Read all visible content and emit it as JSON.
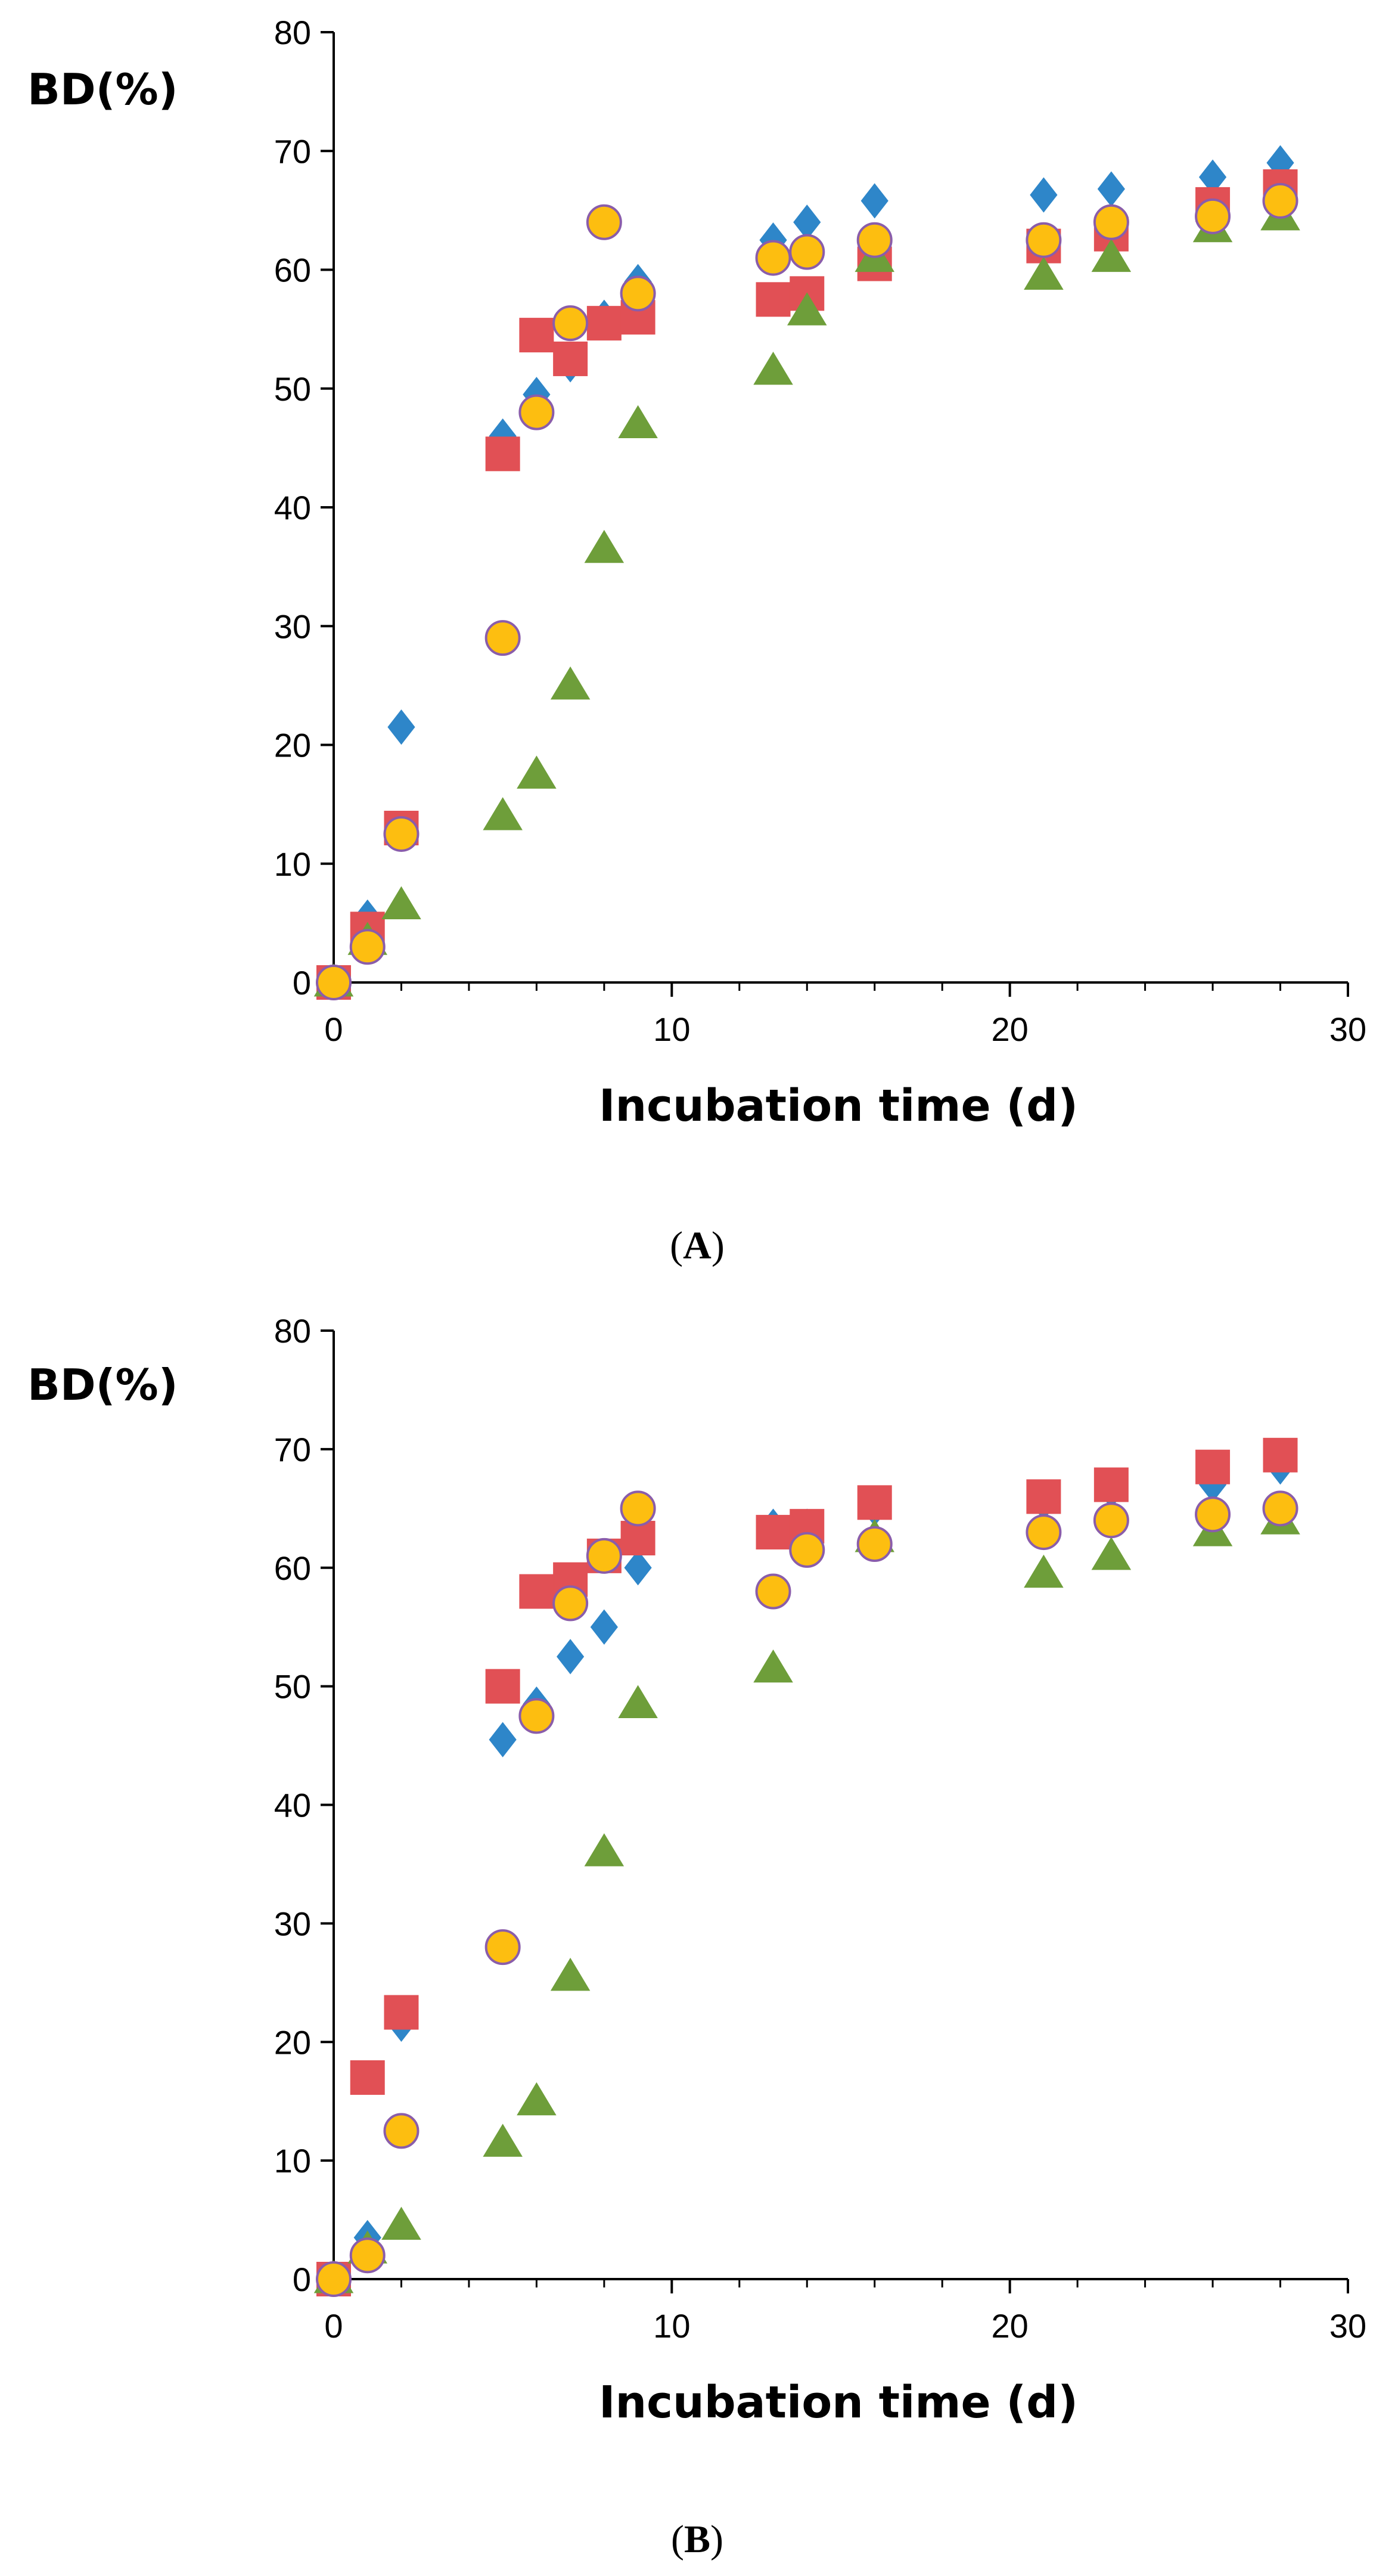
{
  "chart_data": [
    {
      "type": "scatter",
      "panel": "A",
      "ylabel": "BD(%)",
      "xlabel": "Incubation time (d)",
      "xlim": [
        0,
        30
      ],
      "ylim": [
        0,
        80
      ],
      "xticks": [
        "0",
        "10",
        "20",
        "30"
      ],
      "yticks": [
        "0",
        "10",
        "20",
        "30",
        "40",
        "50",
        "60",
        "70",
        "80"
      ],
      "series": [
        {
          "name": "diamond",
          "marker": "diamond",
          "color": "#2E86C9",
          "x": [
            0,
            1,
            2,
            5,
            6,
            7,
            8,
            9,
            13,
            14,
            16,
            21,
            23,
            26,
            28
          ],
          "y": [
            0,
            5.5,
            21.5,
            46,
            49.5,
            52,
            56,
            59,
            62.5,
            64,
            65.8,
            66.3,
            66.8,
            67.8,
            69
          ]
        },
        {
          "name": "square",
          "marker": "square",
          "color": "#E15055",
          "x": [
            0,
            1,
            2,
            5,
            6,
            7,
            8,
            9,
            13,
            14,
            16,
            21,
            23,
            26,
            28
          ],
          "y": [
            0,
            4.5,
            13,
            44.5,
            54.5,
            52.5,
            55.5,
            56,
            57.5,
            58,
            60.5,
            62,
            63,
            65.5,
            67
          ]
        },
        {
          "name": "triangle",
          "marker": "triangle",
          "color": "#6E9E3A",
          "x": [
            0,
            1,
            2,
            5,
            6,
            7,
            8,
            9,
            13,
            14,
            16,
            21,
            23,
            26,
            28
          ],
          "y": [
            0,
            3.5,
            6.5,
            14,
            17.5,
            25,
            36.5,
            47,
            51.5,
            56.5,
            61,
            59.5,
            61,
            63.5,
            64.5
          ]
        },
        {
          "name": "circle",
          "marker": "circle",
          "color": "#FDBE10",
          "x": [
            0,
            1,
            2,
            5,
            6,
            7,
            8,
            9,
            13,
            14,
            16,
            21,
            23,
            26,
            28
          ],
          "y": [
            0,
            3,
            12.5,
            29,
            48,
            55.5,
            64,
            58,
            61,
            61.5,
            62.5,
            62.5,
            64,
            64.5,
            65.8
          ]
        }
      ],
      "caption": "A"
    },
    {
      "type": "scatter",
      "panel": "B",
      "ylabel": "BD(%)",
      "xlabel": "Incubation time (d)",
      "xlim": [
        0,
        30
      ],
      "ylim": [
        0,
        80
      ],
      "xticks": [
        "0",
        "10",
        "20",
        "30"
      ],
      "yticks": [
        "0",
        "10",
        "20",
        "30",
        "40",
        "50",
        "60",
        "70",
        "80"
      ],
      "series": [
        {
          "name": "diamond",
          "marker": "diamond",
          "color": "#2E86C9",
          "x": [
            0,
            1,
            2,
            5,
            6,
            7,
            8,
            9,
            13,
            14,
            16,
            21,
            23,
            26,
            28
          ],
          "y": [
            0,
            3.5,
            21.5,
            45.5,
            48.5,
            52.5,
            55,
            60,
            63.5,
            63.5,
            65,
            65.5,
            66.5,
            67,
            68.5
          ]
        },
        {
          "name": "square",
          "marker": "square",
          "color": "#E15055",
          "x": [
            0,
            1,
            2,
            5,
            6,
            7,
            8,
            9,
            13,
            14,
            16,
            21,
            23,
            26,
            28
          ],
          "y": [
            0,
            17,
            22.5,
            50,
            58,
            59,
            61,
            62.5,
            63,
            63.5,
            65.5,
            66,
            67,
            68.5,
            69.5
          ]
        },
        {
          "name": "triangle",
          "marker": "triangle",
          "color": "#6E9E3A",
          "x": [
            0,
            1,
            2,
            5,
            6,
            7,
            8,
            9,
            13,
            16,
            21,
            23,
            26,
            28
          ],
          "y": [
            0,
            2.5,
            4.5,
            11.5,
            15,
            25.5,
            36,
            48.5,
            51.5,
            62.5,
            59.5,
            61,
            63,
            64
          ]
        },
        {
          "name": "circle",
          "marker": "circle",
          "color": "#FDBE10",
          "x": [
            0,
            1,
            2,
            5,
            6,
            7,
            8,
            9,
            13,
            14,
            16,
            21,
            23,
            26,
            28
          ],
          "y": [
            0,
            2,
            12.5,
            28,
            47.5,
            57,
            61,
            65,
            58,
            61.5,
            62,
            63,
            64,
            64.5,
            65
          ]
        }
      ],
      "caption": "B"
    }
  ]
}
